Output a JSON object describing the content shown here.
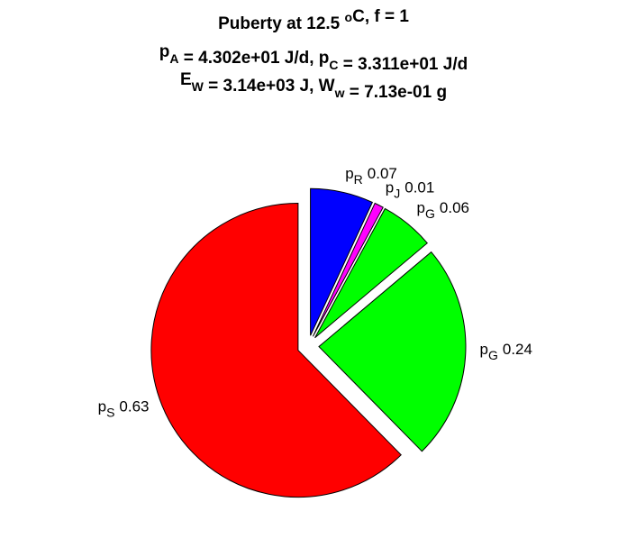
{
  "chart_data": {
    "type": "pie",
    "title_lines": [
      [
        "Puberty at 12.5 ",
        {
          "sup": "o"
        },
        "C, f = 1"
      ],
      [
        "p",
        {
          "sub": "A"
        },
        " = 4.302e+01 J/d,  p",
        {
          "sub": "C"
        },
        " = 3.311e+01 J/d"
      ],
      [
        "E",
        {
          "sub": "W"
        },
        " = 3.14e+03 J, W",
        {
          "sub": "w"
        },
        " = 7.13e-01 g"
      ]
    ],
    "labels": [
      {
        "base": "p",
        "sub": "R"
      },
      {
        "base": "p",
        "sub": "J"
      },
      {
        "base": "p",
        "sub": "G"
      },
      {
        "base": "p",
        "sub": "G"
      },
      {
        "base": "p",
        "sub": "S"
      }
    ],
    "values": [
      0.07,
      0.01,
      0.06,
      0.24,
      0.63
    ],
    "colors": [
      "#0000ff",
      "#ff00ff",
      "#00ff00",
      "#00ff00",
      "#ff0000"
    ],
    "explode": true
  }
}
